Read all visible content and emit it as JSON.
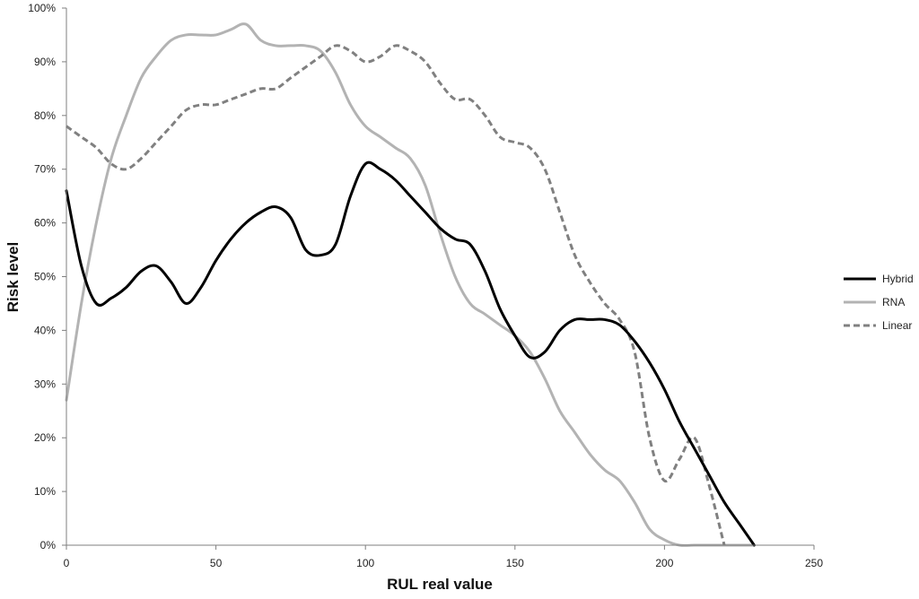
{
  "chart_data": {
    "type": "line",
    "title": "",
    "xlabel": "RUL real value",
    "ylabel": "Risk level",
    "xlim": [
      0,
      250
    ],
    "ylim": [
      0,
      100
    ],
    "x_ticks": [
      0,
      50,
      100,
      150,
      200,
      250
    ],
    "x_tick_labels": [
      "0",
      "50",
      "100",
      "150",
      "200",
      "250"
    ],
    "y_ticks": [
      0,
      10,
      20,
      30,
      40,
      50,
      60,
      70,
      80,
      90,
      100
    ],
    "y_tick_labels": [
      "0%",
      "10%",
      "20%",
      "30%",
      "40%",
      "50%",
      "60%",
      "70%",
      "80%",
      "90%",
      "100%"
    ],
    "grid": false,
    "legend_position": "right",
    "series": [
      {
        "name": "Hybrid",
        "color": "#000000",
        "style": "solid",
        "x": [
          0,
          5,
          10,
          15,
          20,
          25,
          30,
          35,
          40,
          45,
          50,
          55,
          60,
          65,
          70,
          75,
          80,
          85,
          90,
          95,
          100,
          105,
          110,
          115,
          120,
          125,
          130,
          135,
          140,
          145,
          150,
          155,
          160,
          165,
          170,
          175,
          180,
          185,
          190,
          195,
          200,
          205,
          210,
          215,
          220,
          225,
          230
        ],
        "y": [
          66,
          52,
          45,
          46,
          48,
          51,
          52,
          49,
          45,
          48,
          53,
          57,
          60,
          62,
          63,
          61,
          55,
          54,
          56,
          65,
          71,
          70,
          68,
          65,
          62,
          59,
          57,
          56,
          51,
          44,
          39,
          35,
          36,
          40,
          42,
          42,
          42,
          41,
          38,
          34,
          29,
          23,
          18,
          13,
          8,
          4,
          0
        ]
      },
      {
        "name": "RNA",
        "color": "#b3b3b3",
        "style": "solid",
        "x": [
          0,
          5,
          10,
          15,
          20,
          25,
          30,
          35,
          40,
          45,
          50,
          55,
          60,
          65,
          70,
          75,
          80,
          85,
          90,
          95,
          100,
          105,
          110,
          115,
          120,
          125,
          130,
          135,
          140,
          145,
          150,
          155,
          160,
          165,
          170,
          175,
          180,
          185,
          190,
          195,
          200,
          205,
          210,
          215,
          220,
          225,
          230
        ],
        "y": [
          27,
          45,
          60,
          72,
          80,
          87,
          91,
          94,
          95,
          95,
          95,
          96,
          97,
          94,
          93,
          93,
          93,
          92,
          88,
          82,
          78,
          76,
          74,
          72,
          67,
          58,
          50,
          45,
          43,
          41,
          39,
          36,
          31,
          25,
          21,
          17,
          14,
          12,
          8,
          3,
          1,
          0,
          0,
          0,
          0,
          0,
          0
        ]
      },
      {
        "name": "Linear",
        "color": "#808080",
        "style": "dashed",
        "x": [
          0,
          5,
          10,
          15,
          20,
          25,
          30,
          35,
          40,
          45,
          50,
          55,
          60,
          65,
          70,
          75,
          80,
          85,
          90,
          95,
          100,
          105,
          110,
          115,
          120,
          125,
          130,
          135,
          140,
          145,
          150,
          155,
          160,
          165,
          170,
          175,
          180,
          185,
          190,
          195,
          200,
          205,
          210,
          215,
          220
        ],
        "y": [
          78,
          76,
          74,
          71,
          70,
          72,
          75,
          78,
          81,
          82,
          82,
          83,
          84,
          85,
          85,
          87,
          89,
          91,
          93,
          92,
          90,
          91,
          93,
          92,
          90,
          86,
          83,
          83,
          80,
          76,
          75,
          74,
          70,
          62,
          54,
          49,
          45,
          42,
          36,
          20,
          12,
          16,
          20,
          11,
          0
        ]
      }
    ]
  }
}
